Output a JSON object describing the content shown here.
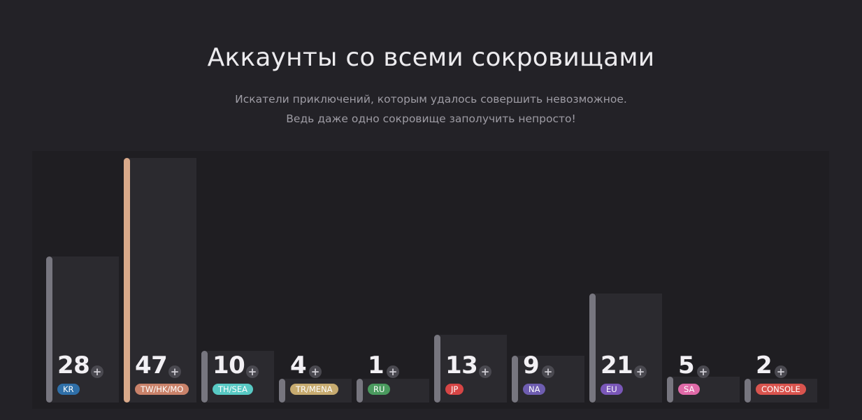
{
  "header": {
    "title": "Аккаунты со всеми сокровищами",
    "subtitle_line1": "Искатели приключений, которым удалось совершить невозможное.",
    "subtitle_line2": "Ведь даже одно сокровище заполучить непросто!"
  },
  "chart_data": {
    "type": "bar",
    "categories": [
      "KR",
      "TW/HK/MO",
      "TH/SEA",
      "TR/MENA",
      "RU",
      "JP",
      "NA",
      "EU",
      "SA",
      "CONSOLE"
    ],
    "values": [
      28,
      47,
      10,
      4,
      1,
      13,
      9,
      21,
      5,
      2
    ],
    "highlighted_category": "TW/HK/MO",
    "badge_colors": [
      "#2f6fa8",
      "#c9826a",
      "#58c9c4",
      "#c7ab70",
      "#4a9a5e",
      "#d64545",
      "#6e5db0",
      "#7a57b8",
      "#e06aa8",
      "#d9544e"
    ],
    "colors": {
      "bar_body": "#2b2a2f",
      "bar_edge": "#77767f",
      "bar_edge_highlight": "#d9a98a"
    },
    "plus_symbol": "+",
    "title": "",
    "xlabel": "",
    "ylabel": ""
  }
}
